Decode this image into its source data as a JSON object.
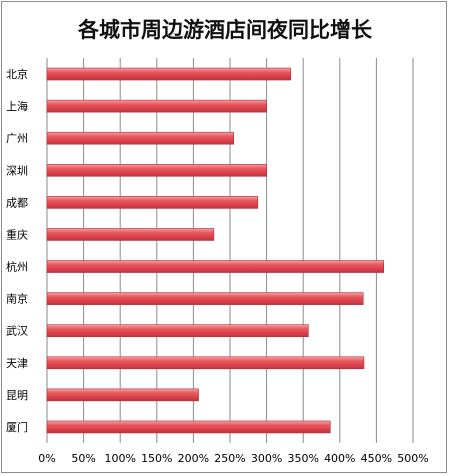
{
  "chart_data": {
    "type": "bar",
    "orientation": "horizontal",
    "title": "各城市周边游酒店间夜同比增长",
    "categories": [
      "北京",
      "上海",
      "广州",
      "深圳",
      "成都",
      "重庆",
      "杭州",
      "南京",
      "武汉",
      "天津",
      "昆明",
      "厦门"
    ],
    "values": [
      333,
      300,
      255,
      300,
      288,
      228,
      460,
      432,
      357,
      433,
      207,
      387
    ],
    "value_unit": "%",
    "xlim": [
      0,
      500
    ],
    "x_ticks": [
      "0%",
      "50%",
      "100%",
      "150%",
      "200%",
      "250%",
      "300%",
      "350%",
      "400%",
      "450%",
      "500%"
    ],
    "grid": true,
    "legend": "none",
    "bar_color": "#e8585f"
  }
}
